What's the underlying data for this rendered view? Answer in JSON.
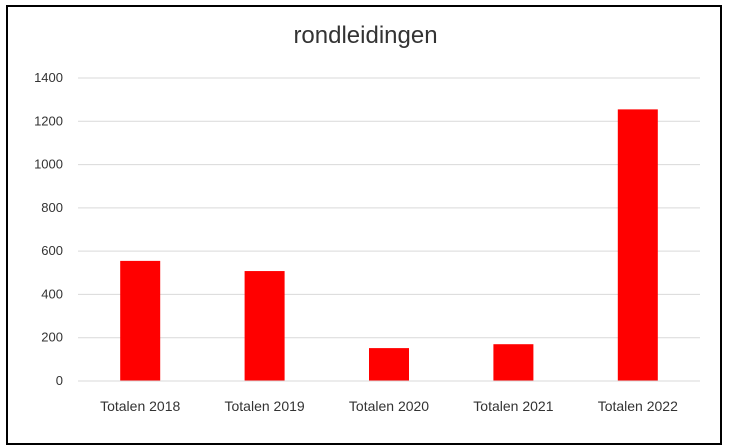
{
  "chart_data": {
    "type": "bar",
    "title": "rondleidingen",
    "categories": [
      "Totalen 2018",
      "Totalen 2019",
      "Totalen 2020",
      "Totalen 2021",
      "Totalen 2022"
    ],
    "values": [
      555,
      508,
      152,
      170,
      1255
    ],
    "yticks": [
      "0",
      "200",
      "400",
      "600",
      "800",
      "1000",
      "1200",
      "1400"
    ],
    "ylim": [
      0,
      1400
    ],
    "grid": true,
    "legend": "none",
    "bar_color": "#ff0000",
    "grid_color": "#d9d9d9"
  }
}
